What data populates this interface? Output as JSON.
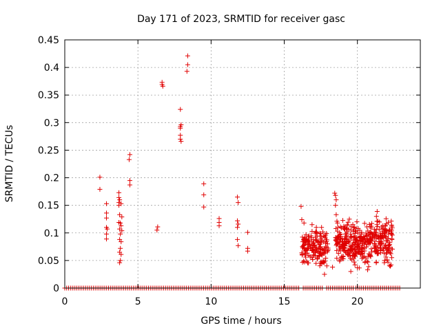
{
  "chart_data": {
    "type": "scatter",
    "title": "Day 171 of 2023, SRMTID for receiver gasc",
    "xlabel": "GPS time / hours",
    "ylabel": "SRMTID / TECUs",
    "xlim": [
      0,
      24.3
    ],
    "ylim": [
      0,
      0.45
    ],
    "x_ticks": [
      0,
      5,
      10,
      15,
      20
    ],
    "x_tick_labels": [
      "0",
      "5",
      "10",
      "15",
      "20"
    ],
    "y_ticks": [
      0,
      0.05,
      0.1,
      0.15,
      0.2,
      0.25,
      0.3,
      0.35,
      0.4,
      0.45
    ],
    "y_tick_labels": [
      "0",
      "0.05",
      "0.1",
      "0.15",
      "0.2",
      "0.25",
      "0.3",
      "0.35",
      "0.4",
      "0.45"
    ],
    "grid": true,
    "marker": "+",
    "series": [
      {
        "name": "SRMTID",
        "color": "#e00000",
        "baseline": {
          "y": 0,
          "ranges": [
            [
              0.0,
              16.0
            ],
            [
              16.3,
              17.7
            ],
            [
              17.9,
              18.7
            ],
            [
              18.8,
              19.8
            ],
            [
              19.9,
              22.9
            ]
          ],
          "step": 0.13
        },
        "points": [
          [
            2.4,
            0.201
          ],
          [
            2.4,
            0.179
          ],
          [
            2.85,
            0.153
          ],
          [
            2.85,
            0.136
          ],
          [
            2.85,
            0.127
          ],
          [
            2.85,
            0.11
          ],
          [
            2.9,
            0.107
          ],
          [
            2.85,
            0.098
          ],
          [
            2.85,
            0.089
          ],
          [
            3.7,
            0.173
          ],
          [
            3.7,
            0.164
          ],
          [
            3.75,
            0.16
          ],
          [
            3.7,
            0.155
          ],
          [
            3.85,
            0.153
          ],
          [
            3.7,
            0.15
          ],
          [
            3.75,
            0.133
          ],
          [
            3.7,
            0.119
          ],
          [
            3.8,
            0.118
          ],
          [
            3.85,
            0.113
          ],
          [
            3.75,
            0.107
          ],
          [
            3.9,
            0.104
          ],
          [
            3.8,
            0.098
          ],
          [
            3.75,
            0.088
          ],
          [
            3.85,
            0.084
          ],
          [
            3.8,
            0.072
          ],
          [
            3.75,
            0.065
          ],
          [
            3.85,
            0.061
          ],
          [
            3.8,
            0.05
          ],
          [
            3.75,
            0.046
          ],
          [
            3.9,
            0.129
          ],
          [
            4.45,
            0.242
          ],
          [
            4.4,
            0.233
          ],
          [
            4.45,
            0.195
          ],
          [
            4.45,
            0.187
          ],
          [
            6.35,
            0.111
          ],
          [
            6.3,
            0.105
          ],
          [
            6.65,
            0.373
          ],
          [
            6.65,
            0.369
          ],
          [
            6.7,
            0.366
          ],
          [
            7.9,
            0.324
          ],
          [
            7.95,
            0.296
          ],
          [
            7.9,
            0.293
          ],
          [
            7.9,
            0.29
          ],
          [
            7.9,
            0.277
          ],
          [
            7.9,
            0.27
          ],
          [
            7.95,
            0.266
          ],
          [
            8.4,
            0.421
          ],
          [
            8.4,
            0.405
          ],
          [
            8.35,
            0.393
          ],
          [
            9.5,
            0.189
          ],
          [
            9.5,
            0.169
          ],
          [
            9.5,
            0.147
          ],
          [
            10.55,
            0.126
          ],
          [
            10.55,
            0.119
          ],
          [
            10.55,
            0.113
          ],
          [
            11.8,
            0.165
          ],
          [
            11.85,
            0.155
          ],
          [
            11.8,
            0.122
          ],
          [
            11.85,
            0.116
          ],
          [
            11.8,
            0.11
          ],
          [
            11.8,
            0.088
          ],
          [
            11.85,
            0.077
          ],
          [
            12.5,
            0.101
          ],
          [
            12.5,
            0.072
          ],
          [
            12.5,
            0.067
          ],
          [
            16.15,
            0.148
          ],
          [
            16.2,
            0.124
          ],
          [
            16.35,
            0.118
          ]
        ],
        "clusters": [
          {
            "x_range": [
              16.2,
              18.0
            ],
            "y_range": [
              0.03,
              0.12
            ],
            "count": 170
          },
          {
            "x_range": [
              18.5,
              20.5
            ],
            "y_range": [
              0.03,
              0.13
            ],
            "count": 230
          },
          {
            "x_range": [
              20.5,
              22.4
            ],
            "y_range": [
              0.03,
              0.14
            ],
            "count": 200
          }
        ],
        "cluster_highs": [
          [
            18.45,
            0.172
          ],
          [
            18.5,
            0.168
          ],
          [
            18.55,
            0.16
          ],
          [
            18.5,
            0.15
          ],
          [
            18.55,
            0.133
          ],
          [
            21.35,
            0.139
          ],
          [
            21.3,
            0.13
          ],
          [
            22.35,
            0.112
          ],
          [
            22.3,
            0.102
          ],
          [
            17.55,
            0.11
          ],
          [
            16.9,
            0.115
          ],
          [
            19.45,
            0.125
          ],
          [
            17.75,
            0.025
          ],
          [
            19.55,
            0.03
          ],
          [
            20.7,
            0.033
          ],
          [
            22.3,
            0.042
          ],
          [
            18.3,
            0.038
          ]
        ]
      }
    ]
  }
}
